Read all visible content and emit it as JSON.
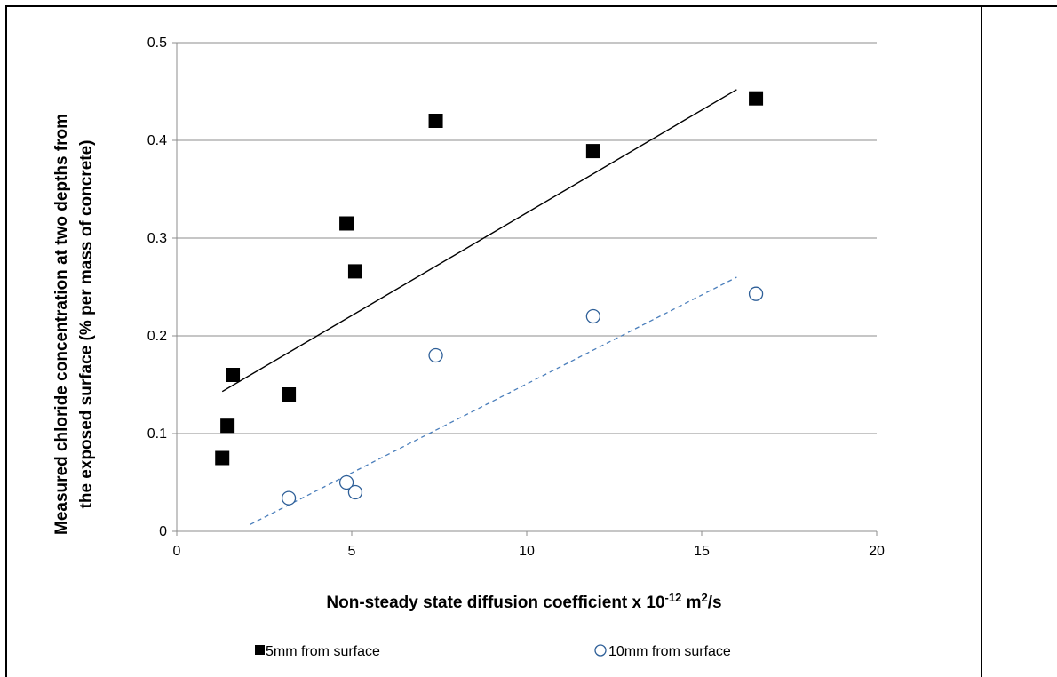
{
  "chart_data": {
    "type": "scatter",
    "title": "",
    "xlabel": "Non-steady state diffusion coefficient x 10",
    "xlabel_superscript": "-12",
    "xlabel_unit_base": " m",
    "xlabel_unit_superscript": "2",
    "xlabel_unit_tail": "/s",
    "ylabel_line1": "Measured chloride concentration at two depths from",
    "ylabel_line2": "the exposed surface (% per mass of concrete)",
    "xlim": [
      0,
      20
    ],
    "ylim": [
      0,
      0.5
    ],
    "x_ticks": [
      0,
      5,
      10,
      15,
      20
    ],
    "x_tick_labels": [
      "0",
      "5",
      "10",
      "15",
      "20"
    ],
    "y_ticks": [
      0,
      0.1,
      0.2,
      0.3,
      0.4,
      0.5
    ],
    "y_tick_labels": [
      "0",
      "0.1",
      "0.2",
      "0.3",
      "0.4",
      "0.5"
    ],
    "grid": "horizontal",
    "legend_position": "bottom",
    "series": [
      {
        "name": "5mm from surface",
        "marker": "filled-square",
        "color": "#000000",
        "x": [
          1.3,
          1.45,
          1.6,
          3.2,
          4.85,
          5.1,
          7.4,
          11.9,
          16.55
        ],
        "y": [
          0.075,
          0.108,
          0.16,
          0.14,
          0.315,
          0.266,
          0.42,
          0.389,
          0.443
        ],
        "trendline": {
          "style": "solid",
          "color": "#000000",
          "x": [
            1.3,
            16.0
          ],
          "y": [
            0.143,
            0.452
          ]
        }
      },
      {
        "name": "10mm from surface",
        "marker": "open-circle",
        "color": "#2e5f98",
        "x": [
          3.2,
          4.85,
          5.1,
          7.4,
          11.9,
          16.55
        ],
        "y": [
          0.034,
          0.05,
          0.04,
          0.18,
          0.22,
          0.243
        ],
        "trendline": {
          "style": "dashed",
          "color": "#4a7ebb",
          "x": [
            2.1,
            16.0
          ],
          "y": [
            0.007,
            0.26
          ]
        }
      }
    ]
  }
}
